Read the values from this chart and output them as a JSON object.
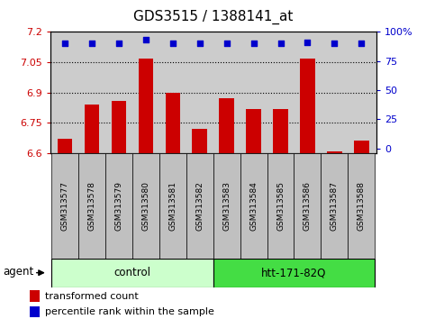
{
  "title": "GDS3515 / 1388141_at",
  "samples": [
    "GSM313577",
    "GSM313578",
    "GSM313579",
    "GSM313580",
    "GSM313581",
    "GSM313582",
    "GSM313583",
    "GSM313584",
    "GSM313585",
    "GSM313586",
    "GSM313587",
    "GSM313588"
  ],
  "bar_values": [
    6.67,
    6.84,
    6.86,
    7.07,
    6.9,
    6.72,
    6.87,
    6.82,
    6.82,
    7.07,
    6.61,
    6.66
  ],
  "pct_values": [
    90,
    90,
    90,
    93,
    90,
    90,
    90,
    90,
    90,
    91,
    90,
    90
  ],
  "bar_color": "#cc0000",
  "percentile_color": "#0000cc",
  "bar_bottom": 6.6,
  "ylim_left": [
    6.6,
    7.2
  ],
  "ylim_right": [
    -4,
    100
  ],
  "yticks_left": [
    6.6,
    6.75,
    6.9,
    7.05,
    7.2
  ],
  "yticks_right": [
    0,
    25,
    50,
    75,
    100
  ],
  "ytick_labels_left": [
    "6.6",
    "6.75",
    "6.9",
    "7.05",
    "7.2"
  ],
  "ytick_labels_right": [
    "0",
    "25",
    "50",
    "75",
    "100%"
  ],
  "grid_values": [
    6.75,
    6.9,
    7.05
  ],
  "control_label": "control",
  "control_color": "#ccffcc",
  "htt_label": "htt-171-82Q",
  "htt_color": "#44dd44",
  "agent_label": "agent",
  "legend_bar_label": "transformed count",
  "legend_percentile_label": "percentile rank within the sample",
  "title_fontsize": 11,
  "tick_fontsize": 8,
  "sample_fontsize": 6.5,
  "legend_fontsize": 8,
  "background_color": "#ffffff",
  "plot_bg_color": "#cccccc",
  "sample_box_color": "#c0c0c0"
}
